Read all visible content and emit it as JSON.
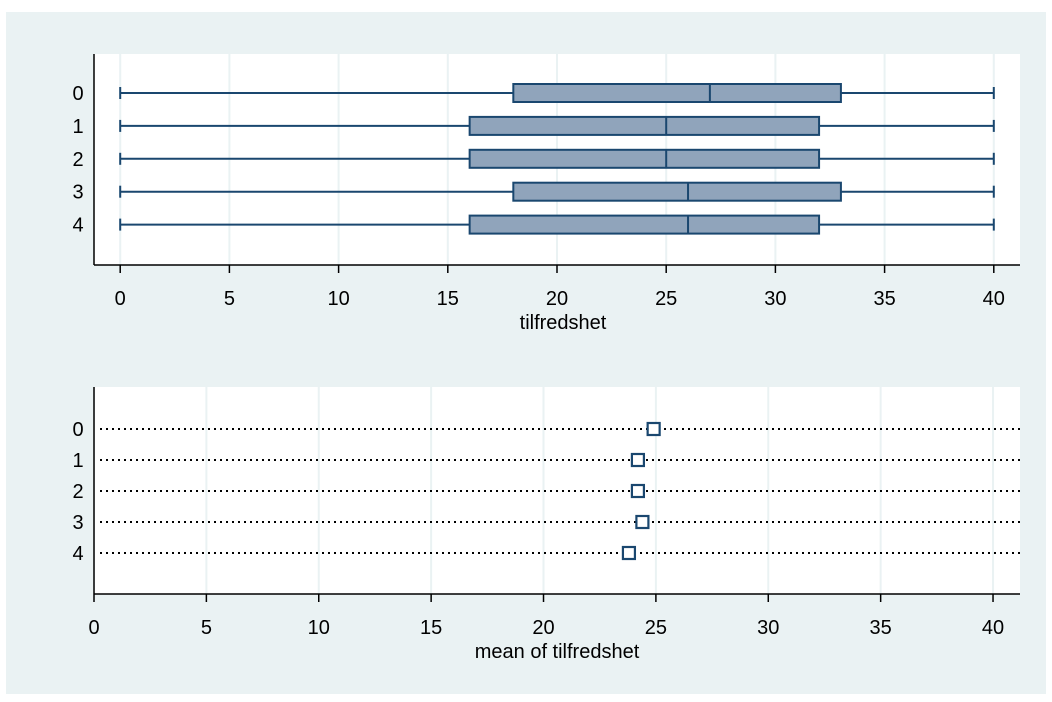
{
  "colors": {
    "background": "#eaf2f3",
    "plot_area": "#ffffff",
    "gridline": "#eaf2f3",
    "box_fill": "#90a4bb",
    "box_stroke": "#1a476f",
    "marker": "#1a476f",
    "axis": "#000000"
  },
  "chart_data": [
    {
      "type": "box",
      "orientation": "horizontal",
      "categories": [
        "0",
        "1",
        "2",
        "3",
        "4"
      ],
      "boxes": [
        {
          "category": "0",
          "min": 0,
          "q1": 18,
          "median": 27,
          "q3": 33,
          "max": 40
        },
        {
          "category": "1",
          "min": 0,
          "q1": 16,
          "median": 25,
          "q3": 32,
          "max": 40
        },
        {
          "category": "2",
          "min": 0,
          "q1": 16,
          "median": 25,
          "q3": 32,
          "max": 40
        },
        {
          "category": "3",
          "min": 0,
          "q1": 18,
          "median": 26,
          "q3": 33,
          "max": 40
        },
        {
          "category": "4",
          "min": 0,
          "q1": 16,
          "median": 26,
          "q3": 32,
          "max": 40
        }
      ],
      "xlabel": "tilfredshet",
      "ylabel": "",
      "xlim": [
        -1.2,
        41.2
      ],
      "xticks": [
        0,
        5,
        10,
        15,
        20,
        25,
        30,
        35,
        40
      ],
      "grid": true
    },
    {
      "type": "dot",
      "orientation": "horizontal",
      "categories": [
        "0",
        "1",
        "2",
        "3",
        "4"
      ],
      "values": [
        24.9,
        24.2,
        24.2,
        24.4,
        23.8
      ],
      "xlabel": "mean of tilfredshet",
      "ylabel": "",
      "xlim": [
        0,
        41.2
      ],
      "xticks": [
        0,
        5,
        10,
        15,
        20,
        25,
        30,
        35,
        40
      ],
      "grid": true,
      "dotted_guides": true
    }
  ]
}
